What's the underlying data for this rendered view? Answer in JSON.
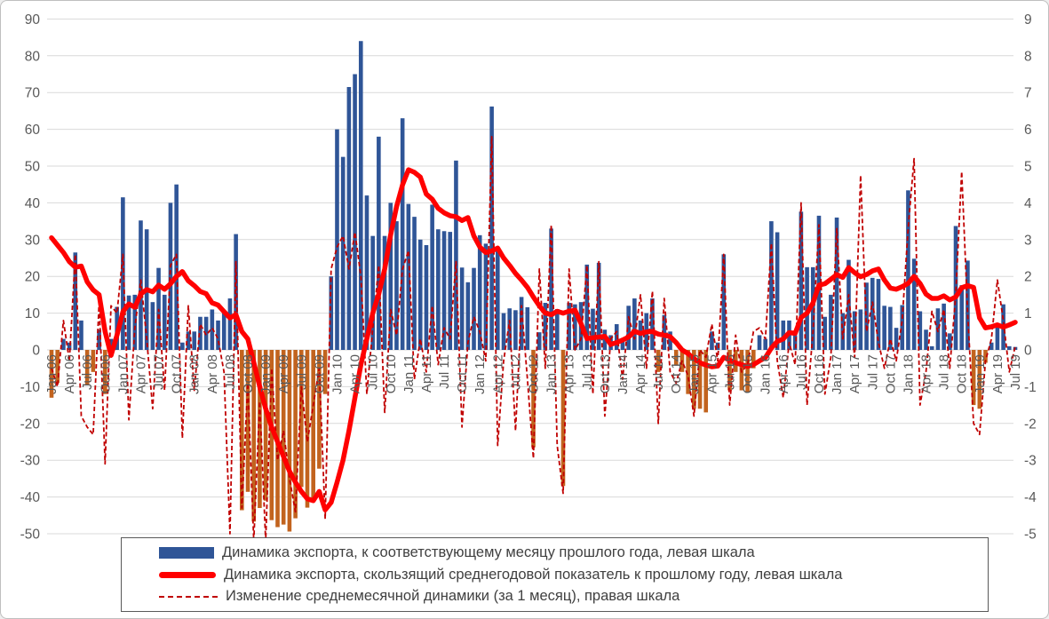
{
  "chart_data": {
    "type": "combo",
    "title": "",
    "months_count": 163,
    "x_range": [
      "Jan 06",
      "Jul 19"
    ],
    "x_tick_labels": [
      "Jan 06",
      "Apr 06",
      "Jul 06",
      "Oct 06",
      "Jan 07",
      "Apr 07",
      "Jul 07",
      "Oct 07",
      "Jan 08",
      "Apr 08",
      "Jul 08",
      "Oct 08",
      "Jan 09",
      "Apr 09",
      "Jul 09",
      "Oct 09",
      "Jan 10",
      "Apr 10",
      "Jul 10",
      "Oct 10",
      "Jan 11",
      "Apr 11",
      "Jul 11",
      "Oct 11",
      "Jan 12",
      "Apr 12",
      "Jul 12",
      "Oct 12",
      "Jan 13",
      "Apr 13",
      "Jul 13",
      "Oct 13",
      "Jan 14",
      "Apr 14",
      "Jul 14",
      "Oct 14",
      "Jan 15",
      "Apr 15",
      "Jul 15",
      "Oct 15",
      "Jan 16",
      "Apr 16",
      "Jul 16",
      "Oct 16",
      "Jan 17",
      "Apr 17",
      "Jul 17",
      "Oct 17",
      "Jan 18",
      "Apr 18",
      "Jul 18",
      "Oct 18",
      "Jan 19",
      "Apr 19",
      "Jul 19"
    ],
    "left_axis": {
      "min": -50,
      "max": 90,
      "step": 10,
      "ticks": [
        90,
        80,
        70,
        60,
        50,
        40,
        30,
        20,
        10,
        0,
        -10,
        -20,
        -30,
        -40,
        -50
      ]
    },
    "right_axis": {
      "min": -5,
      "max": 9,
      "step": 1,
      "ticks": [
        9,
        8,
        7,
        6,
        5,
        4,
        3,
        2,
        1,
        0,
        -1,
        -2,
        -3,
        -4,
        -5
      ]
    },
    "grid": true,
    "legend_position": "bottom",
    "series": [
      {
        "name": "Динамика экспорта, к соответствующему месяцу прошлого года, левая шкала",
        "type": "bar",
        "axis": "left",
        "color_positive": "#2F5597",
        "color_negative": "#C2631E",
        "values": [
          -13,
          -9,
          3,
          2,
          26.5,
          8,
          -9.5,
          -6,
          5.5,
          -12,
          3,
          11.7,
          41.5,
          14.8,
          15,
          35.2,
          32.8,
          13,
          22.3,
          15,
          40,
          45,
          2,
          5,
          5,
          9,
          9,
          11,
          8,
          10,
          14,
          31.5,
          -43.6,
          -38.6,
          -46.7,
          -43,
          -41,
          -46.3,
          -48.2,
          -47.5,
          -49.4,
          -45.8,
          -37.3,
          -42.9,
          -40.7,
          -32.3,
          -12,
          20,
          60,
          52.5,
          71.5,
          75,
          84,
          42,
          31,
          58,
          31,
          40,
          35,
          63,
          39.7,
          36.2,
          30,
          28.5,
          39.5,
          32.8,
          32.3,
          32.1,
          51.5,
          22.4,
          18.4,
          22.3,
          31.2,
          28.9,
          66.2,
          26.8,
          10,
          11.3,
          10.8,
          14.4,
          11.6,
          -26.5,
          4.8,
          12.8,
          33,
          11.1,
          -37,
          12.8,
          12.4,
          13,
          23.2,
          11.2,
          23.7,
          5.5,
          4,
          7,
          3,
          12,
          14,
          8,
          10,
          14,
          -6,
          9.5,
          5,
          -4,
          -6,
          -12,
          -16,
          -16,
          -17,
          5,
          2,
          26,
          -11,
          -6,
          -11,
          -11.5,
          -5,
          4,
          3,
          35,
          32,
          8,
          8,
          4,
          37.6,
          22.5,
          22.5,
          36.5,
          9,
          15,
          36,
          10,
          24.5,
          10.5,
          11,
          18.3,
          19.6,
          19.3,
          12,
          11.7,
          6,
          12.2,
          43.4,
          24.8,
          10.5,
          5.5,
          1,
          11.3,
          12.6,
          4.5,
          33.7,
          17.6,
          24.3,
          -15,
          -16,
          -3.5,
          2,
          7.2,
          12.4,
          1,
          0.8
        ]
      },
      {
        "name": "Динамика экспорта, скользящий среднегодовой показатель к прошлому году, левая шкала",
        "type": "line",
        "axis": "left",
        "color": "#FF0000",
        "values": [
          30.5,
          28.5,
          26.5,
          24,
          22.5,
          22.8,
          18.5,
          16.3,
          15,
          5,
          -1.5,
          4,
          10.4,
          12.5,
          11.6,
          15.2,
          16.4,
          15.8,
          17.6,
          16.5,
          18,
          20,
          21.3,
          18.8,
          17.5,
          15.9,
          15.3,
          12.8,
          12.2,
          10.4,
          8.7,
          9.6,
          5,
          3,
          -3.4,
          -10,
          -16,
          -21,
          -25,
          -29,
          -33,
          -36,
          -38.5,
          -40.5,
          -41,
          -38.5,
          -43.5,
          -41.5,
          -36,
          -30,
          -22,
          -13,
          -4,
          3,
          10,
          15.2,
          22,
          31.3,
          39,
          44.9,
          49,
          48.3,
          47,
          42.4,
          41,
          38.5,
          37.3,
          36.5,
          36.2,
          35.2,
          36,
          31,
          28,
          26.5,
          26.9,
          27.7,
          25,
          23,
          20.8,
          19,
          17,
          14.4,
          12,
          10,
          9.6,
          10.5,
          10,
          10.5,
          10.8,
          7.2,
          3.1,
          3.3,
          3.5,
          3.7,
          1.5,
          2,
          2.7,
          3.5,
          5.1,
          4.5,
          4.9,
          5,
          4.3,
          4,
          3.6,
          2,
          0,
          -1,
          -2.4,
          -3.5,
          -4.1,
          -4.6,
          -4.4,
          -2,
          -2.8,
          -3.5,
          -4,
          -4.5,
          -4,
          -3,
          -2.1,
          0.5,
          2.3,
          3,
          4.7,
          4.5,
          8.8,
          10,
          12.8,
          17.6,
          18,
          19.2,
          20.5,
          19.7,
          22.4,
          21,
          19.9,
          20.5,
          21.5,
          22,
          19,
          16.8,
          16.5,
          17.2,
          18.1,
          20,
          18.1,
          15.2,
          14,
          14,
          14.7,
          13.6,
          14.4,
          16.9,
          17.5,
          17,
          8.7,
          6,
          6.3,
          6.8,
          6.2,
          6.8,
          7.5
        ]
      },
      {
        "name": "Изменение среднемесячной динамики (за 1 месяц), правая шкала",
        "type": "dashed-line",
        "axis": "right",
        "color": "#C00000",
        "values": [
          -0.5,
          -1,
          0.8,
          -0.3,
          2.6,
          -1.8,
          -2.1,
          -2.3,
          1.3,
          -3.1,
          1.2,
          1,
          2.6,
          -1.9,
          0.6,
          1.9,
          0.3,
          -1.6,
          1.1,
          -1.1,
          2.3,
          2.6,
          -2.4,
          1.2,
          -1.1,
          0.7,
          0.4,
          0.6,
          0.3,
          -0.6,
          -5,
          2.4,
          -4.3,
          -0.9,
          -5.2,
          -1.4,
          -5.2,
          -0.5,
          -3,
          -2.2,
          -3.5,
          -4.4,
          -1,
          -2.5,
          -1.5,
          -0.5,
          -4.6,
          2.2,
          2.8,
          3.1,
          2.2,
          3.2,
          2,
          -1.2,
          0.6,
          2.3,
          -1.7,
          1.1,
          0.4,
          2.2,
          2.7,
          -0.8,
          0.3,
          -0.6,
          1.2,
          -0.4,
          0.6,
          0.3,
          2.4,
          -2.1,
          0.2,
          0.9,
          0.5,
          -0.3,
          5.8,
          -2.6,
          -0.3,
          0.8,
          -2.2,
          1.2,
          -0.8,
          -2.95,
          2.2,
          -0.5,
          3.4,
          -2.6,
          -3.9,
          2.2,
          0,
          0.3,
          2.3,
          -1.2,
          2.4,
          -1.8,
          0.3,
          0.5,
          -0.8,
          0.9,
          0.3,
          1.5,
          -0.5,
          1.6,
          -2,
          1.4,
          -0.6,
          -0.9,
          -0.3,
          -0.7,
          -1.8,
          0,
          -0.2,
          0.7,
          -0.3,
          2.6,
          -1.5,
          0.4,
          -0.6,
          -0.4,
          0.5,
          0.6,
          0.3,
          2.9,
          -0.3,
          -1.3,
          0.2,
          -0.4,
          4,
          -1.5,
          0.5,
          3.4,
          -1.2,
          -0.2,
          3.3,
          0.3,
          1.5,
          -0.2,
          4.75,
          0.5,
          1.3,
          0.2,
          -0.5,
          0.3,
          -0.3,
          0.8,
          3.3,
          5.2,
          -1.5,
          -0.6,
          1.05,
          0.5,
          1.1,
          -0.5,
          1.5,
          4.85,
          1,
          -2,
          -2.3,
          -0.3,
          0.3,
          1.9,
          0.8,
          -0.6,
          0.1
        ]
      }
    ]
  },
  "colors": {
    "bar_positive": "#2F5597",
    "bar_negative": "#C2631E",
    "line_solid": "#FF0000",
    "line_dashed": "#C00000",
    "gridline": "#D9D9D9",
    "axis_text": "#595959",
    "legend_text": "#404040",
    "legend_border": "#595959",
    "frame_border": "#BFBFBF",
    "background": "#FFFFFF"
  }
}
